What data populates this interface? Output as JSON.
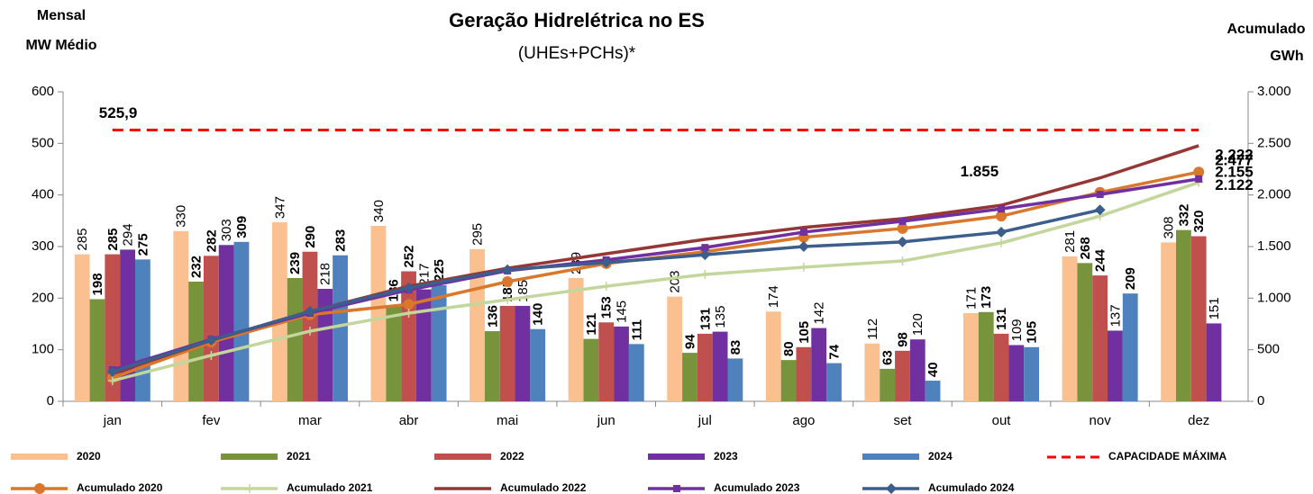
{
  "chart_data": {
    "type": "bar",
    "title": "Geração Hidrelétrica no ES",
    "subtitle": "(UHEs+PCHs)*",
    "y_label": [
      "Mensal",
      "MW Médio"
    ],
    "y2_label": [
      "Acumulado",
      "GWh"
    ],
    "categories": [
      "jan",
      "fev",
      "mar",
      "abr",
      "mai",
      "jun",
      "jul",
      "ago",
      "set",
      "out",
      "nov",
      "dez"
    ],
    "ylim": [
      0,
      600
    ],
    "yticks": [
      0,
      100,
      200,
      300,
      400,
      500,
      600
    ],
    "y2lim": [
      0,
      3000
    ],
    "y2ticks": [
      0,
      500,
      {
        "value": 1000,
        "label": "1.000"
      },
      {
        "value": 1500,
        "label": "1.500"
      },
      {
        "value": 2000,
        "label": "2.000"
      },
      {
        "value": 2500,
        "label": "2.500"
      },
      {
        "value": 3000,
        "label": "3.000"
      }
    ],
    "series": [
      {
        "name": "2020",
        "type": "bar",
        "color": "#fac090",
        "label_color": "#9c5a1e",
        "values": [
          285,
          330,
          347,
          340,
          295,
          239,
          203,
          174,
          112,
          171,
          281,
          308
        ]
      },
      {
        "name": "2021",
        "type": "bar",
        "color": "#77933c",
        "label_color": "#4f6228",
        "values": [
          198,
          232,
          239,
          186,
          136,
          121,
          94,
          80,
          63,
          173,
          268,
          332
        ]
      },
      {
        "name": "2022",
        "type": "bar",
        "color": "#c0504d",
        "label_color": "#953735",
        "values": [
          285,
          282,
          290,
          252,
          185,
          153,
          131,
          105,
          98,
          131,
          244,
          320
        ]
      },
      {
        "name": "2023",
        "type": "bar",
        "color": "#7030a0",
        "label_color": "#7030a0",
        "values": [
          294,
          303,
          218,
          217,
          185,
          145,
          135,
          142,
          120,
          109,
          137,
          151
        ]
      },
      {
        "name": "2024",
        "type": "bar",
        "color": "#4f81bd",
        "label_color": "#376092",
        "values": [
          275,
          309,
          283,
          225,
          140,
          111,
          83,
          74,
          40,
          105,
          209,
          null
        ]
      },
      {
        "name": "CAPACIDADE MÁXIMA",
        "type": "hline",
        "color": "#ff0000",
        "value": 525.9,
        "value_label": "525,9"
      },
      {
        "name": "Acumulado 2020",
        "type": "line",
        "axis": "y2",
        "color": "#d9772c",
        "marker": "circle",
        "values": [
          227,
          575,
          840,
          940,
          1160,
          1335,
          1450,
          1590,
          1675,
          1795,
          2025,
          2222
        ],
        "value_labels": [
          null,
          null,
          null,
          null,
          null,
          null,
          null,
          null,
          null,
          null,
          null,
          "2.222"
        ]
      },
      {
        "name": "Acumulado 2021",
        "type": "line",
        "axis": "y2",
        "color": "#c3d69b",
        "marker": "plus",
        "values": [
          200,
          445,
          680,
          855,
          985,
          1115,
          1230,
          1300,
          1360,
          1535,
          1795,
          2122
        ],
        "value_labels": [
          null,
          null,
          null,
          null,
          null,
          null,
          null,
          null,
          null,
          null,
          null,
          "2.122"
        ]
      },
      {
        "name": "Acumulado 2022",
        "type": "line",
        "axis": "y2",
        "color": "#953735",
        "marker": "none",
        "values": [
          270,
          590,
          870,
          1115,
          1290,
          1430,
          1570,
          1685,
          1770,
          1900,
          2165,
          2477
        ],
        "value_labels": [
          null,
          null,
          null,
          null,
          null,
          null,
          null,
          null,
          null,
          null,
          null,
          "2.477"
        ]
      },
      {
        "name": "Acumulado 2023",
        "type": "line",
        "axis": "y2",
        "color": "#7030a0",
        "marker": "square",
        "values": [
          305,
          600,
          855,
          1080,
          1265,
          1370,
          1490,
          1640,
          1745,
          1865,
          2005,
          2155
        ],
        "value_labels": [
          null,
          null,
          null,
          null,
          null,
          null,
          null,
          null,
          null,
          null,
          null,
          "2.155"
        ]
      },
      {
        "name": "Acumulado 2024",
        "type": "line",
        "axis": "y2",
        "color": "#3b5e8c",
        "marker": "diamond",
        "values": [
          288,
          593,
          872,
          1100,
          1275,
          1345,
          1420,
          1500,
          1545,
          1640,
          1855,
          null
        ],
        "value_labels": [
          null,
          null,
          null,
          null,
          null,
          null,
          null,
          null,
          null,
          null,
          "1.855",
          null
        ]
      }
    ]
  }
}
